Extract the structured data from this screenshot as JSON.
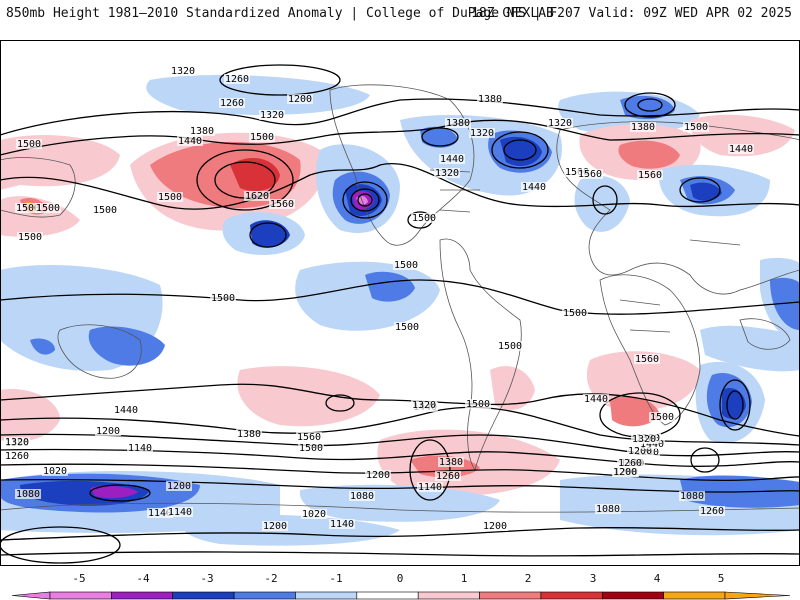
{
  "header": {
    "title": "850mb Height 1981–2010 Standardized Anomaly | College of DuPage NEXLAB",
    "run_info": "18Z GFS | F207 Valid: 09Z WED APR 02 2025"
  },
  "colors": {
    "neg5": "#e77ee0",
    "neg4": "#9c1fc2",
    "neg3": "#1b3fbf",
    "neg2": "#4e7be6",
    "neg1": "#bcd6f7",
    "neutral": "#ffffff",
    "pos1": "#f8c9cf",
    "pos2": "#ef7b7f",
    "pos3": "#d83238",
    "pos4": "#a40015",
    "pos5": "#f5a615",
    "land_outline": "#555555",
    "contour": "#000000"
  },
  "colorbar": {
    "ticks": [
      "-5",
      "-4",
      "-3",
      "-2",
      "-1",
      "0",
      "1",
      "2",
      "3",
      "4",
      "5"
    ]
  },
  "contour_labels": [
    "1320",
    "1260",
    "1200",
    "1260",
    "1320",
    "1380",
    "1440",
    "1500",
    "1620",
    "1560",
    "1500",
    "1500",
    "1500",
    "1500",
    "1380",
    "1320",
    "1380",
    "1320",
    "1440",
    "1320",
    "1380",
    "1500",
    "1560",
    "1440",
    "1500",
    "1560",
    "1440",
    "1500",
    "1500",
    "1500",
    "1500",
    "1500",
    "1500",
    "1500",
    "1500",
    "1560",
    "1440",
    "1320",
    "1500",
    "1440",
    "1380",
    "1320",
    "1260",
    "1200",
    "1140",
    "1440",
    "1380",
    "1260",
    "1200",
    "1140",
    "1200",
    "1080",
    "1020",
    "1080",
    "1140",
    "1200",
    "1380",
    "1560",
    "1500",
    "1380",
    "1260",
    "1200",
    "1140",
    "1080",
    "1020",
    "1140",
    "1200",
    "1140",
    "1080",
    "1260",
    "1200",
    "1500",
    "1440",
    "1380",
    "1320",
    "1260",
    "1200"
  ]
}
